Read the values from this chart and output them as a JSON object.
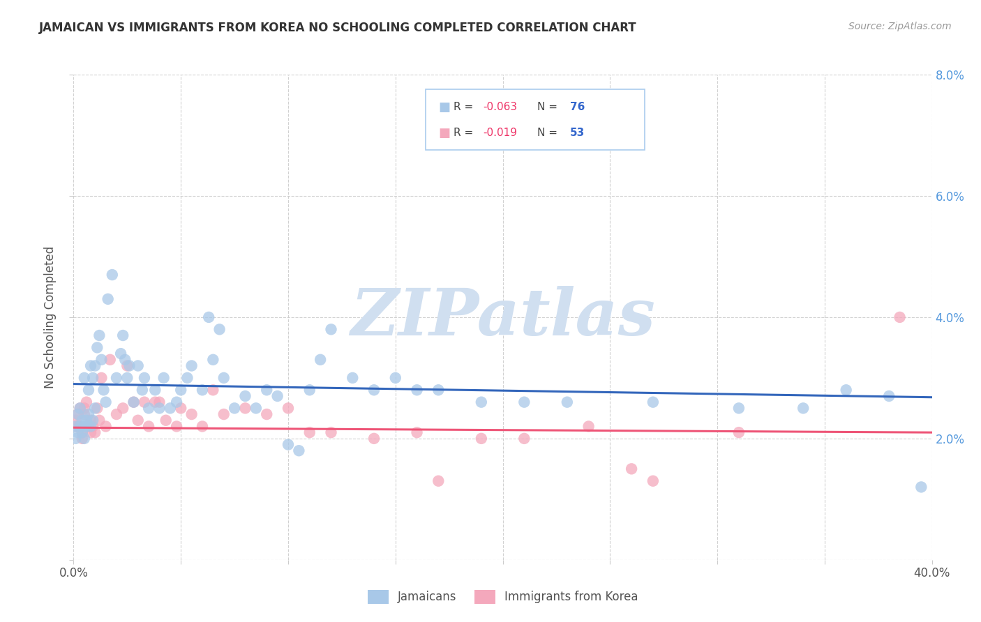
{
  "title": "JAMAICAN VS IMMIGRANTS FROM KOREA NO SCHOOLING COMPLETED CORRELATION CHART",
  "source": "Source: ZipAtlas.com",
  "ylabel": "No Schooling Completed",
  "xlim": [
    0.0,
    0.4
  ],
  "ylim": [
    0.0,
    0.08
  ],
  "xticks": [
    0.0,
    0.05,
    0.1,
    0.15,
    0.2,
    0.25,
    0.3,
    0.35,
    0.4
  ],
  "yticks": [
    0.0,
    0.02,
    0.04,
    0.06,
    0.08
  ],
  "ytick_labels_right": [
    "",
    "2.0%",
    "4.0%",
    "6.0%",
    "8.0%"
  ],
  "xtick_labels": [
    "0.0%",
    "",
    "",
    "",
    "",
    "",
    "",
    "",
    "40.0%"
  ],
  "series1_label": "Jamaicans",
  "series2_label": "Immigrants from Korea",
  "series1_R": "-0.063",
  "series1_N": "76",
  "series2_R": "-0.019",
  "series2_N": "53",
  "series1_color": "#a8c8e8",
  "series2_color": "#f4a8bc",
  "series1_line_color": "#3366bb",
  "series2_line_color": "#ee5577",
  "watermark_text": "ZIPatlas",
  "watermark_color": "#d0dff0",
  "background_color": "#ffffff",
  "grid_color": "#cccccc",
  "title_color": "#333333",
  "source_color": "#999999",
  "right_axis_color": "#5599dd",
  "legend_R_color": "#ee3366",
  "legend_N_color": "#3366cc",
  "blue_line_y0": 0.029,
  "blue_line_y1": 0.0268,
  "pink_line_y0": 0.0218,
  "pink_line_y1": 0.021,
  "jamaican_x": [
    0.001,
    0.001,
    0.002,
    0.002,
    0.003,
    0.003,
    0.004,
    0.004,
    0.005,
    0.005,
    0.005,
    0.006,
    0.006,
    0.007,
    0.007,
    0.008,
    0.008,
    0.009,
    0.009,
    0.01,
    0.01,
    0.011,
    0.012,
    0.013,
    0.014,
    0.015,
    0.016,
    0.018,
    0.02,
    0.022,
    0.023,
    0.024,
    0.025,
    0.026,
    0.028,
    0.03,
    0.032,
    0.033,
    0.035,
    0.038,
    0.04,
    0.042,
    0.045,
    0.048,
    0.05,
    0.053,
    0.055,
    0.06,
    0.063,
    0.065,
    0.068,
    0.07,
    0.075,
    0.08,
    0.085,
    0.09,
    0.095,
    0.1,
    0.105,
    0.11,
    0.115,
    0.12,
    0.13,
    0.14,
    0.15,
    0.16,
    0.17,
    0.19,
    0.21,
    0.23,
    0.27,
    0.31,
    0.34,
    0.36,
    0.38,
    0.395
  ],
  "jamaican_y": [
    0.02,
    0.022,
    0.021,
    0.024,
    0.022,
    0.025,
    0.021,
    0.023,
    0.02,
    0.022,
    0.03,
    0.022,
    0.023,
    0.024,
    0.028,
    0.022,
    0.032,
    0.023,
    0.03,
    0.025,
    0.032,
    0.035,
    0.037,
    0.033,
    0.028,
    0.026,
    0.043,
    0.047,
    0.03,
    0.034,
    0.037,
    0.033,
    0.03,
    0.032,
    0.026,
    0.032,
    0.028,
    0.03,
    0.025,
    0.028,
    0.025,
    0.03,
    0.025,
    0.026,
    0.028,
    0.03,
    0.032,
    0.028,
    0.04,
    0.033,
    0.038,
    0.03,
    0.025,
    0.027,
    0.025,
    0.028,
    0.027,
    0.019,
    0.018,
    0.028,
    0.033,
    0.038,
    0.03,
    0.028,
    0.03,
    0.028,
    0.028,
    0.026,
    0.026,
    0.026,
    0.026,
    0.025,
    0.025,
    0.028,
    0.027,
    0.012
  ],
  "korea_x": [
    0.001,
    0.001,
    0.002,
    0.002,
    0.003,
    0.003,
    0.004,
    0.004,
    0.005,
    0.005,
    0.006,
    0.006,
    0.007,
    0.008,
    0.008,
    0.009,
    0.01,
    0.011,
    0.012,
    0.013,
    0.015,
    0.017,
    0.02,
    0.023,
    0.025,
    0.028,
    0.03,
    0.033,
    0.035,
    0.038,
    0.04,
    0.043,
    0.048,
    0.05,
    0.055,
    0.06,
    0.065,
    0.07,
    0.08,
    0.09,
    0.1,
    0.11,
    0.12,
    0.14,
    0.16,
    0.17,
    0.19,
    0.21,
    0.24,
    0.26,
    0.27,
    0.31,
    0.385
  ],
  "korea_y": [
    0.022,
    0.023,
    0.022,
    0.024,
    0.022,
    0.025,
    0.02,
    0.021,
    0.024,
    0.025,
    0.022,
    0.026,
    0.022,
    0.023,
    0.021,
    0.022,
    0.021,
    0.025,
    0.023,
    0.03,
    0.022,
    0.033,
    0.024,
    0.025,
    0.032,
    0.026,
    0.023,
    0.026,
    0.022,
    0.026,
    0.026,
    0.023,
    0.022,
    0.025,
    0.024,
    0.022,
    0.028,
    0.024,
    0.025,
    0.024,
    0.025,
    0.021,
    0.021,
    0.02,
    0.021,
    0.013,
    0.02,
    0.02,
    0.022,
    0.015,
    0.013,
    0.021,
    0.04
  ]
}
